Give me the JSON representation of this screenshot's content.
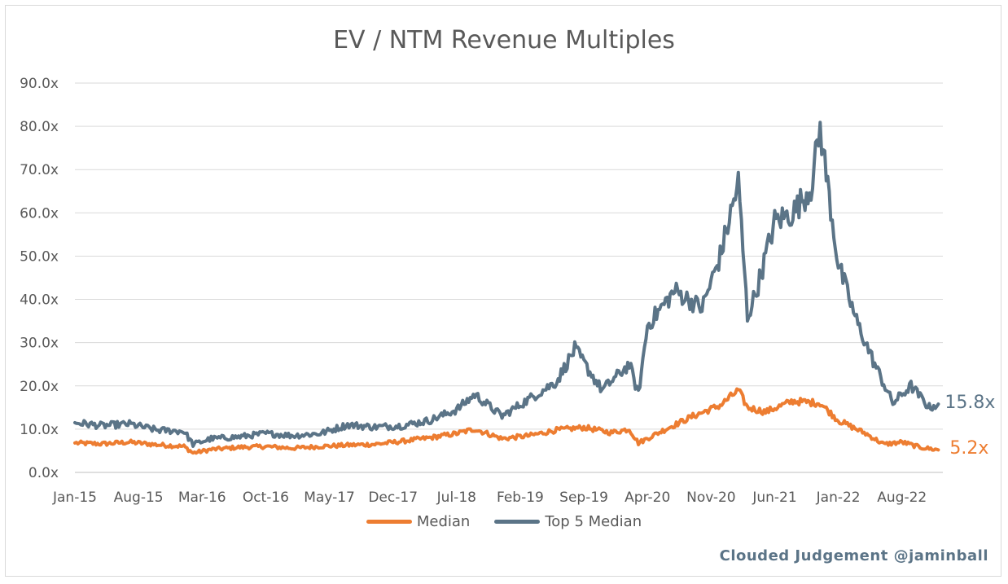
{
  "chart_data": {
    "type": "line",
    "title": "EV / NTM Revenue Multiples",
    "ylim": [
      0,
      90
    ],
    "y_ticks": [
      "0.0x",
      "10.0x",
      "20.0x",
      "30.0x",
      "40.0x",
      "50.0x",
      "60.0x",
      "70.0x",
      "80.0x",
      "90.0x"
    ],
    "x_tick_labels": [
      "Jan-15",
      "Aug-15",
      "Mar-16",
      "Oct-16",
      "May-17",
      "Dec-17",
      "Jul-18",
      "Feb-19",
      "Sep-19",
      "Apr-20",
      "Nov-20",
      "Jun-21",
      "Jan-22",
      "Aug-22"
    ],
    "grid": true,
    "legend_position": "bottom",
    "series": [
      {
        "name": "Median",
        "color": "#ED7D31",
        "end_label": "5.2x",
        "points": [
          [
            "2015-01",
            6.8
          ],
          [
            "2015-04",
            6.6
          ],
          [
            "2015-07",
            7.0
          ],
          [
            "2015-10",
            6.4
          ],
          [
            "2016-01",
            6.0
          ],
          [
            "2016-02",
            4.5
          ],
          [
            "2016-04",
            5.3
          ],
          [
            "2016-07",
            5.8
          ],
          [
            "2016-10",
            6.0
          ],
          [
            "2017-01",
            5.6
          ],
          [
            "2017-04",
            6.0
          ],
          [
            "2017-07",
            6.3
          ],
          [
            "2017-10",
            6.5
          ],
          [
            "2018-01",
            7.2
          ],
          [
            "2018-04",
            8.0
          ],
          [
            "2018-07",
            9.0
          ],
          [
            "2018-09",
            10.0
          ],
          [
            "2018-12",
            7.8
          ],
          [
            "2019-03",
            8.5
          ],
          [
            "2019-06",
            9.8
          ],
          [
            "2019-09",
            10.4
          ],
          [
            "2019-12",
            9.2
          ],
          [
            "2020-02",
            10.0
          ],
          [
            "2020-03",
            6.8
          ],
          [
            "2020-06",
            10.0
          ],
          [
            "2020-09",
            13.0
          ],
          [
            "2020-12",
            15.5
          ],
          [
            "2021-02",
            19.0
          ],
          [
            "2021-03",
            15.0
          ],
          [
            "2021-05",
            14.0
          ],
          [
            "2021-08",
            16.5
          ],
          [
            "2021-11",
            16.0
          ],
          [
            "2022-01",
            12.0
          ],
          [
            "2022-04",
            9.0
          ],
          [
            "2022-06",
            6.5
          ],
          [
            "2022-08",
            7.0
          ],
          [
            "2022-10",
            5.8
          ],
          [
            "2022-12",
            5.2
          ]
        ]
      },
      {
        "name": "Top 5 Median",
        "color": "#5B7487",
        "end_label": "15.8x",
        "points": [
          [
            "2015-01",
            11.5
          ],
          [
            "2015-04",
            10.8
          ],
          [
            "2015-07",
            11.2
          ],
          [
            "2015-10",
            9.8
          ],
          [
            "2016-01",
            9.5
          ],
          [
            "2016-02",
            6.5
          ],
          [
            "2016-04",
            7.8
          ],
          [
            "2016-07",
            8.2
          ],
          [
            "2016-10",
            9.0
          ],
          [
            "2017-01",
            8.5
          ],
          [
            "2017-04",
            9.0
          ],
          [
            "2017-07",
            11.0
          ],
          [
            "2017-10",
            10.5
          ],
          [
            "2018-01",
            10.8
          ],
          [
            "2018-04",
            12.0
          ],
          [
            "2018-07",
            14.5
          ],
          [
            "2018-09",
            18.0
          ],
          [
            "2018-12",
            13.0
          ],
          [
            "2019-03",
            17.0
          ],
          [
            "2019-06",
            21.0
          ],
          [
            "2019-08",
            28.5
          ],
          [
            "2019-11",
            19.0
          ],
          [
            "2020-02",
            25.0
          ],
          [
            "2020-03",
            18.0
          ],
          [
            "2020-04",
            34.0
          ],
          [
            "2020-07",
            42.0
          ],
          [
            "2020-10",
            38.0
          ],
          [
            "2020-12",
            50.0
          ],
          [
            "2021-02",
            67.0
          ],
          [
            "2021-03",
            36.0
          ],
          [
            "2021-04",
            42.0
          ],
          [
            "2021-06",
            58.0
          ],
          [
            "2021-08",
            60.0
          ],
          [
            "2021-10",
            66.0
          ],
          [
            "2021-11",
            79.5
          ],
          [
            "2022-01",
            48.0
          ],
          [
            "2022-03",
            35.0
          ],
          [
            "2022-05",
            25.0
          ],
          [
            "2022-07",
            16.0
          ],
          [
            "2022-09",
            20.0
          ],
          [
            "2022-11",
            15.0
          ],
          [
            "2022-12",
            15.8
          ]
        ]
      }
    ]
  },
  "credit": "Clouded Judgement @jaminball"
}
